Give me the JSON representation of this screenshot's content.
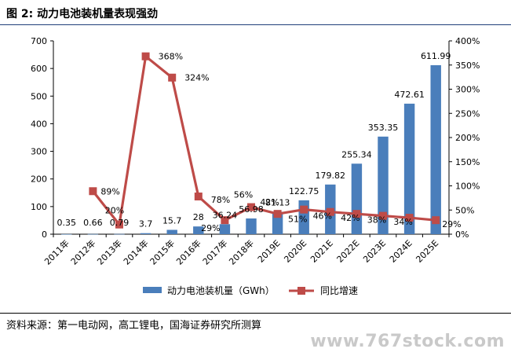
{
  "title": "图 2:  动力电池装机量表现强劲",
  "source": "资料来源：第一电动网，高工锂电，国海证券研究所测算",
  "watermark": "www.767stock.com",
  "colors": {
    "bar": "#4a7ebb",
    "line": "#be4b48"
  },
  "chart_data": {
    "type": "bar+line",
    "categories": [
      "2011年",
      "2012年",
      "2013年",
      "2014年",
      "2015年",
      "2016年",
      "2017年",
      "2018年",
      "2019E",
      "2020E",
      "2021E",
      "2022E",
      "2023E",
      "2024E",
      "2025E"
    ],
    "series": [
      {
        "name": "动力电池装机量（GWh）",
        "type": "bar",
        "axis": "left",
        "values": [
          0.35,
          0.66,
          0.79,
          3.7,
          15.7,
          28,
          36.24,
          56.98,
          81.13,
          122.75,
          179.82,
          255.34,
          353.35,
          472.61,
          611.99
        ],
        "labels": [
          "0.35",
          "0.66",
          "0.79",
          "3.7",
          "15.7",
          "28",
          "36.24",
          "56.98",
          "81.13",
          "122.75",
          "179.82",
          "255.34",
          "353.35",
          "472.61",
          "611.99"
        ]
      },
      {
        "name": "同比增速",
        "type": "line",
        "axis": "right",
        "values": [
          null,
          89,
          20,
          368,
          324,
          78,
          29,
          56,
          42,
          51,
          46,
          42,
          38,
          34,
          29
        ],
        "labels": [
          null,
          "89%",
          "20%",
          "368%",
          "324%",
          "78%",
          "29%",
          "56%",
          "42%",
          "51%",
          "46%",
          "42%",
          "38%",
          "34%",
          "29%"
        ]
      }
    ],
    "y_left": {
      "ylim": [
        0,
        700
      ],
      "ticks": [
        "0",
        "100",
        "200",
        "300",
        "400",
        "500",
        "600",
        "700"
      ]
    },
    "y_right": {
      "ylim": [
        0,
        400
      ],
      "ticks": [
        "0%",
        "50%",
        "100%",
        "150%",
        "200%",
        "250%",
        "300%",
        "350%",
        "400%"
      ]
    },
    "legend": "bottom",
    "grid": false
  }
}
